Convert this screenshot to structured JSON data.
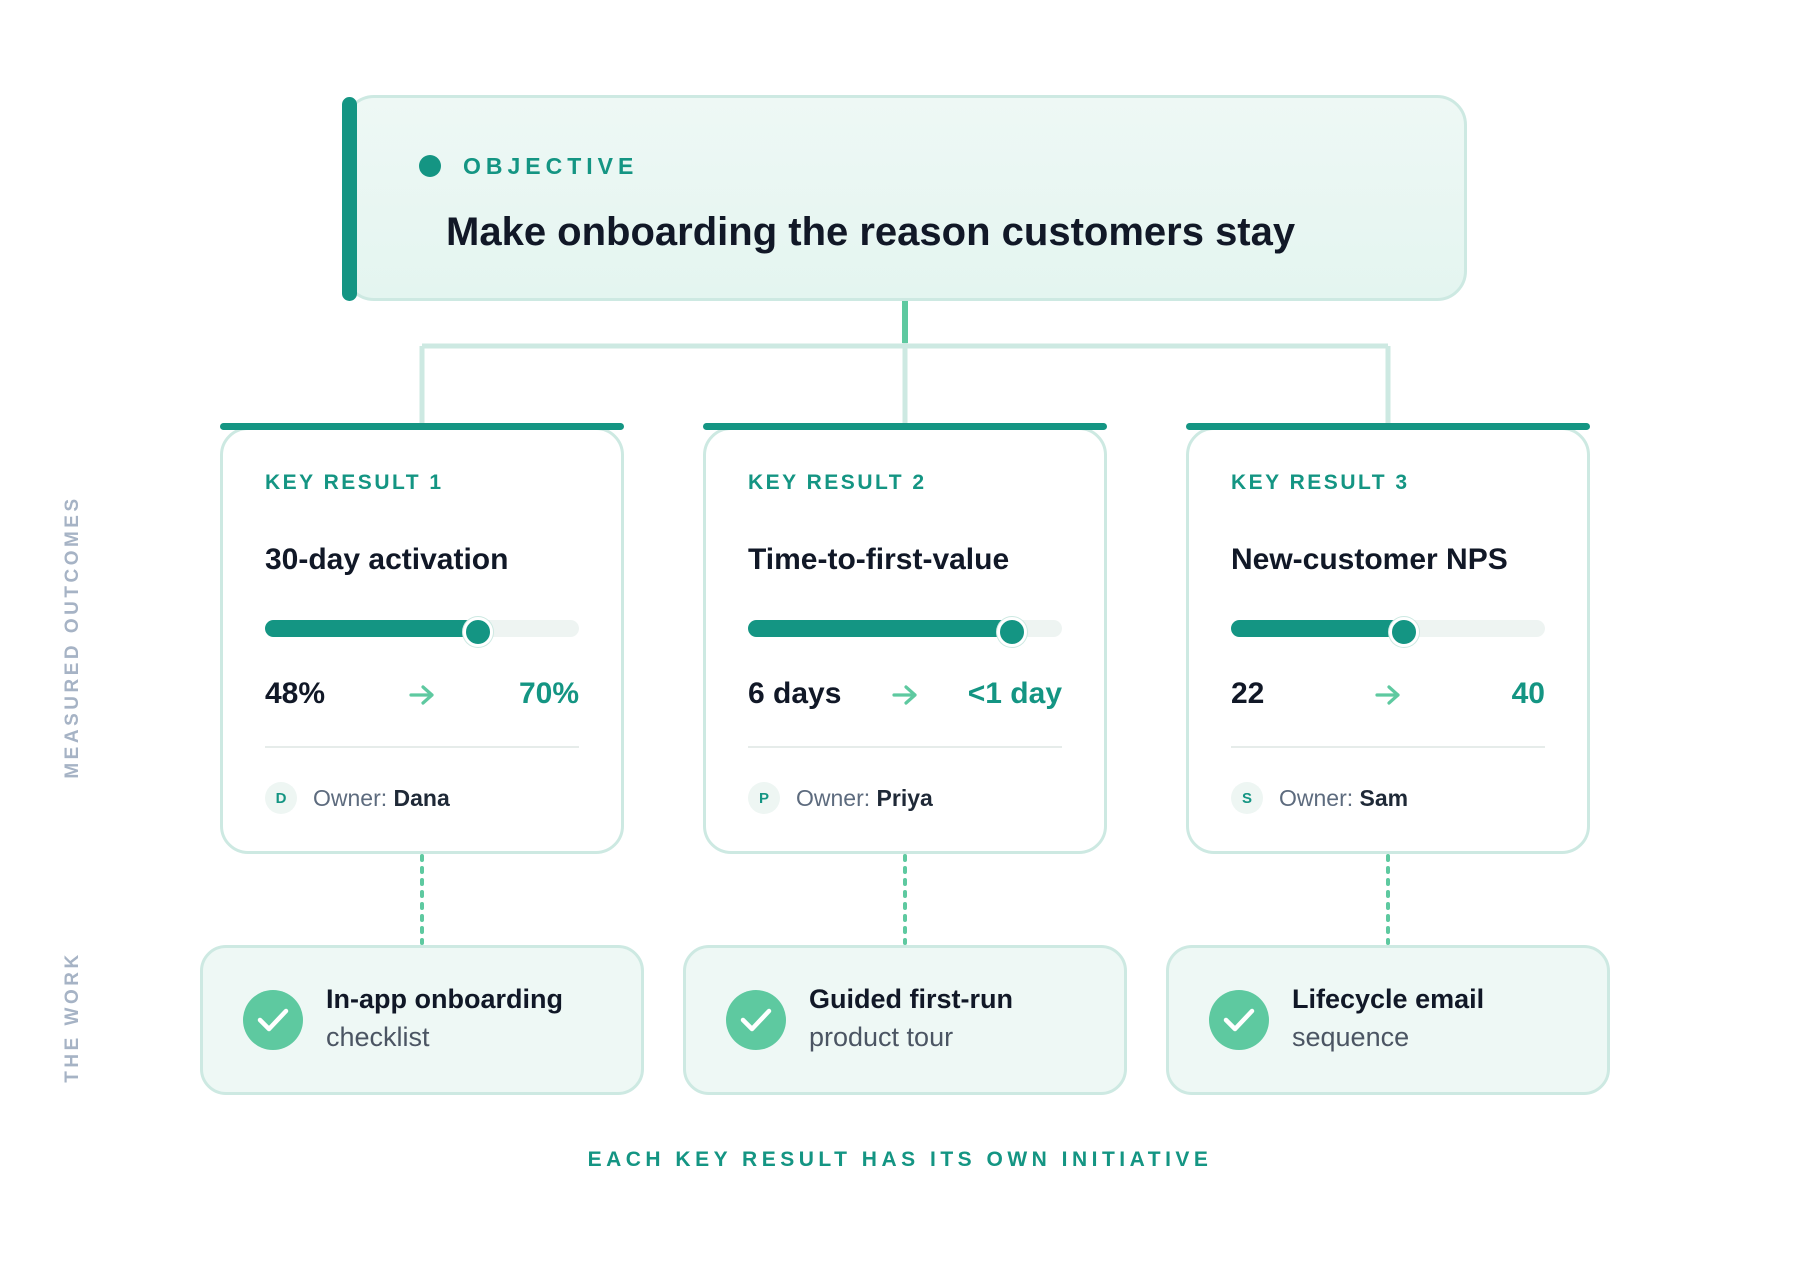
{
  "objective": {
    "label": "OBJECTIVE",
    "title": "Make onboarding the reason customers stay"
  },
  "side_labels": {
    "outcomes": "MEASURED OUTCOMES",
    "work": "THE WORK"
  },
  "colors": {
    "accent": "#149583",
    "check": "#5ec9a0",
    "card_border": "#cde9e2",
    "side_label": "#a6b3c5"
  },
  "key_results": [
    {
      "label": "KEY RESULT 1",
      "title": "30-day activation",
      "current": "48%",
      "target": "70%",
      "progress": 0.67,
      "owner_prefix": "Owner:",
      "owner_initial": "D",
      "owner": "Dana"
    },
    {
      "label": "KEY RESULT 2",
      "title": "Time-to-first-value",
      "current": "6 days",
      "target": "<1 day",
      "progress": 0.83,
      "owner_prefix": "Owner:",
      "owner_initial": "P",
      "owner": "Priya"
    },
    {
      "label": "KEY RESULT 3",
      "title": "New-customer NPS",
      "current": "22",
      "target": "40",
      "progress": 0.54,
      "owner_prefix": "Owner:",
      "owner_initial": "S",
      "owner": "Sam"
    }
  ],
  "initiatives": [
    {
      "line1": "In-app onboarding",
      "line2": "checklist",
      "icon": "check-circle-icon"
    },
    {
      "line1": "Guided first-run",
      "line2": "product tour",
      "icon": "check-circle-icon"
    },
    {
      "line1": "Lifecycle email",
      "line2": "sequence",
      "icon": "check-circle-icon"
    }
  ],
  "footer": "EACH KEY RESULT HAS ITS OWN INITIATIVE"
}
